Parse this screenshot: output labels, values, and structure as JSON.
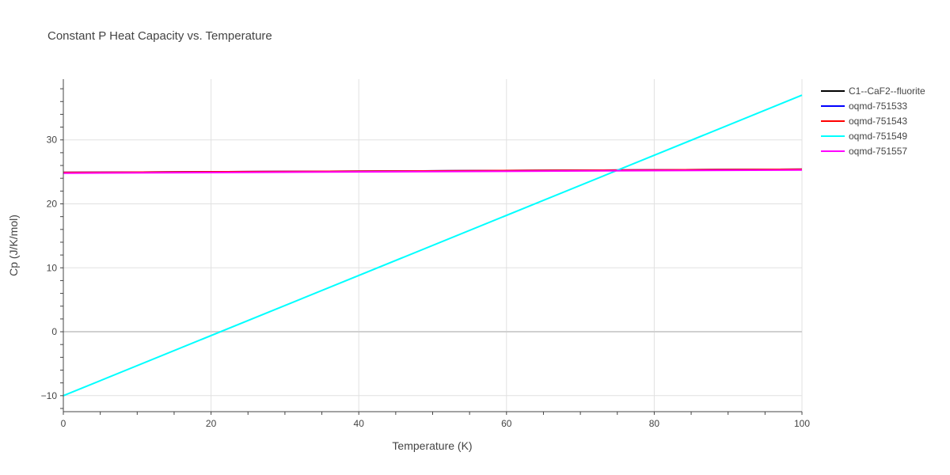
{
  "chart_data": {
    "type": "line",
    "title": "Constant P Heat Capacity vs. Temperature",
    "xlabel": "Temperature (K)",
    "ylabel": "Cp (J/K/mol)",
    "xlim": [
      0,
      100
    ],
    "ylim": [
      -12.5,
      39.5
    ],
    "xticks": [
      0,
      20,
      40,
      60,
      80,
      100
    ],
    "yticks": [
      -10,
      0,
      10,
      20,
      30
    ],
    "ytick_labels": [
      "−10",
      "0",
      "10",
      "20",
      "30"
    ],
    "grid": true,
    "legend_position": "top-right",
    "series": [
      {
        "name": "C1--CaF2--fluorite",
        "color": "#000000",
        "x": [
          0,
          100
        ],
        "y": [
          24.9,
          25.4
        ]
      },
      {
        "name": "oqmd-751533",
        "color": "#0000ff",
        "x": [
          0,
          100
        ],
        "y": [
          24.9,
          25.4
        ]
      },
      {
        "name": "oqmd-751543",
        "color": "#ff0000",
        "x": [
          0,
          100
        ],
        "y": [
          24.9,
          25.4
        ]
      },
      {
        "name": "oqmd-751549",
        "color": "#00ffff",
        "x": [
          0,
          100
        ],
        "y": [
          -10.0,
          37.0
        ]
      },
      {
        "name": "oqmd-751557",
        "color": "#ff00ff",
        "x": [
          0,
          100
        ],
        "y": [
          24.8,
          25.3
        ]
      }
    ]
  }
}
